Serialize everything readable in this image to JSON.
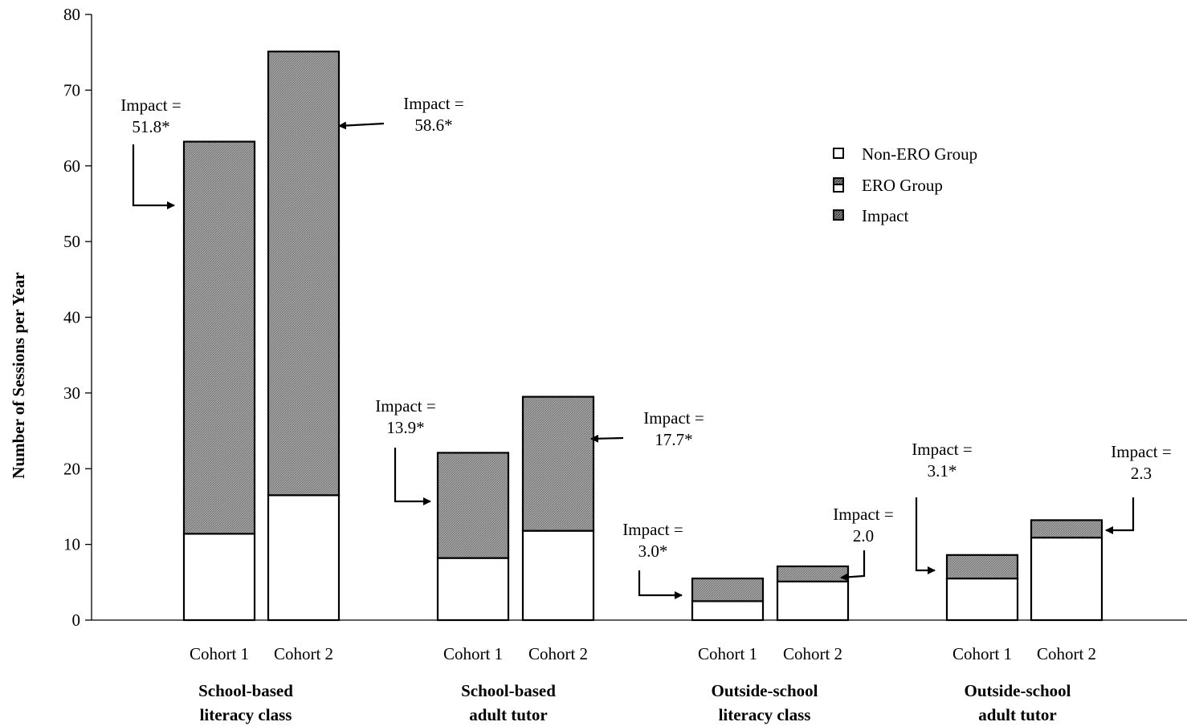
{
  "chart_data": {
    "type": "bar",
    "stacked": true,
    "ylabel": "Number of Sessions per Year",
    "xlabel": "",
    "ylim": [
      0,
      80
    ],
    "y_ticks": [
      0,
      10,
      20,
      30,
      40,
      50,
      60,
      70,
      80
    ],
    "grid": false,
    "legend_position": "top-right",
    "colors": {
      "bar_fill": "#ffffff",
      "impact_fill": "#a6a6a6",
      "stroke": "#000000"
    },
    "legend": [
      {
        "label": "Non-ERO Group",
        "swatch": "white"
      },
      {
        "label": "ERO Group",
        "swatch": "split"
      },
      {
        "label": "Impact",
        "swatch": "hatched"
      }
    ],
    "groups": [
      {
        "label_lines": [
          "School-based",
          "literacy class"
        ],
        "bars": [
          {
            "category": "Cohort 1",
            "non_ero": 11.4,
            "impact": 51.8,
            "annotation": [
              "Impact =",
              "51.8*"
            ]
          },
          {
            "category": "Cohort 2",
            "non_ero": 16.5,
            "impact": 58.6,
            "annotation": [
              "Impact =",
              "58.6*"
            ]
          }
        ]
      },
      {
        "label_lines": [
          "School-based",
          "adult tutor"
        ],
        "bars": [
          {
            "category": "Cohort 1",
            "non_ero": 8.2,
            "impact": 13.9,
            "annotation": [
              "Impact =",
              "13.9*"
            ]
          },
          {
            "category": "Cohort 2",
            "non_ero": 11.8,
            "impact": 17.7,
            "annotation": [
              "Impact =",
              "17.7*"
            ]
          }
        ]
      },
      {
        "label_lines": [
          "Outside-school",
          "literacy class"
        ],
        "bars": [
          {
            "category": "Cohort 1",
            "non_ero": 2.5,
            "impact": 3.0,
            "annotation": [
              "Impact =",
              "3.0*"
            ]
          },
          {
            "category": "Cohort 2",
            "non_ero": 5.1,
            "impact": 2.0,
            "annotation": [
              "Impact =",
              "2.0"
            ]
          }
        ]
      },
      {
        "label_lines": [
          "Outside-school",
          "adult tutor"
        ],
        "bars": [
          {
            "category": "Cohort 1",
            "non_ero": 5.5,
            "impact": 3.1,
            "annotation": [
              "Impact =",
              "3.1*"
            ]
          },
          {
            "category": "Cohort 2",
            "non_ero": 10.9,
            "impact": 2.3,
            "annotation": [
              "Impact =",
              "2.3"
            ]
          }
        ]
      }
    ]
  }
}
